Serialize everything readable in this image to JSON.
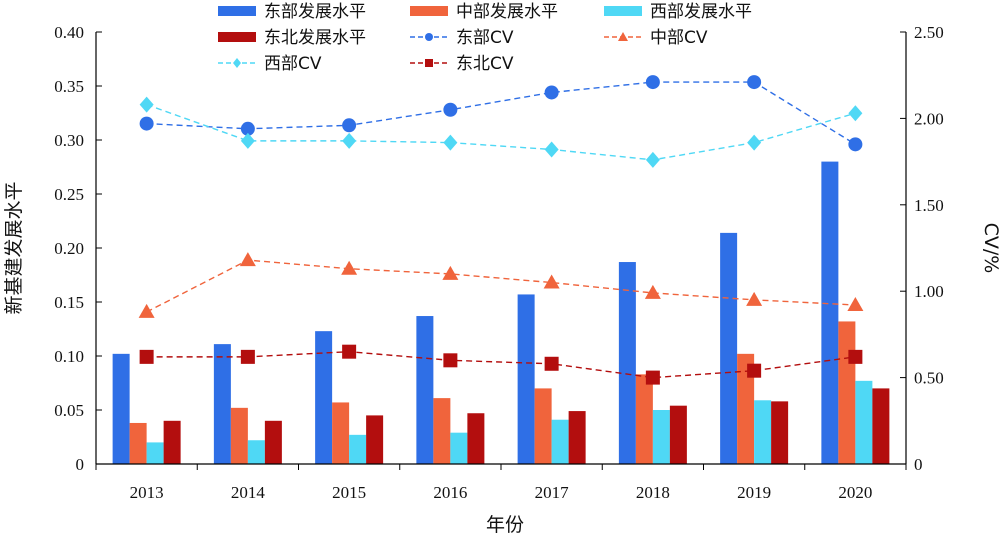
{
  "chart_data": {
    "type": "bar",
    "categories": [
      "2013",
      "2014",
      "2015",
      "2016",
      "2017",
      "2018",
      "2019",
      "2020"
    ],
    "xlabel": "年份",
    "ylabel": "新基建发展水平",
    "y2label": "CV/%",
    "ylim": [
      0,
      0.4
    ],
    "y2lim": [
      0,
      2.5
    ],
    "yticks": [
      "0",
      "0.05",
      "0.10",
      "0.15",
      "0.20",
      "0.25",
      "0.30",
      "0.35",
      "0.40"
    ],
    "y2ticks": [
      "0",
      "0.50",
      "1.00",
      "1.50",
      "2.00",
      "2.50"
    ],
    "bar_series": [
      {
        "name": "东部发展水平",
        "color": "#2f6fe6",
        "values": [
          0.102,
          0.111,
          0.123,
          0.137,
          0.157,
          0.187,
          0.214,
          0.28
        ]
      },
      {
        "name": "中部发展水平",
        "color": "#f0643c",
        "values": [
          0.038,
          0.052,
          0.057,
          0.061,
          0.07,
          0.083,
          0.102,
          0.132
        ]
      },
      {
        "name": "西部发展水平",
        "color": "#4fd8f5",
        "values": [
          0.02,
          0.022,
          0.027,
          0.029,
          0.041,
          0.05,
          0.059,
          0.077
        ]
      },
      {
        "name": "东北发展水平",
        "color": "#b30e0e",
        "values": [
          0.04,
          0.04,
          0.045,
          0.047,
          0.049,
          0.054,
          0.058,
          0.07
        ]
      }
    ],
    "line_series": [
      {
        "name": "东部CV",
        "color": "#2f6fe6",
        "marker": "circle",
        "values": [
          1.97,
          1.94,
          1.96,
          2.05,
          2.15,
          2.21,
          2.21,
          1.85
        ]
      },
      {
        "name": "中部CV",
        "color": "#f0643c",
        "marker": "triangle",
        "values": [
          0.88,
          1.18,
          1.13,
          1.1,
          1.05,
          0.99,
          0.95,
          0.92
        ]
      },
      {
        "name": "西部CV",
        "color": "#4fd8f5",
        "marker": "diamond",
        "values": [
          2.08,
          1.87,
          1.87,
          1.86,
          1.82,
          1.76,
          1.86,
          2.03
        ]
      },
      {
        "name": "东北CV",
        "color": "#b30e0e",
        "marker": "square",
        "values": [
          0.62,
          0.62,
          0.65,
          0.6,
          0.58,
          0.5,
          0.54,
          0.62
        ]
      }
    ],
    "legend": {
      "row1": [
        "东部发展水平",
        "中部发展水平",
        "西部发展水平"
      ],
      "row2": [
        "东北发展水平",
        "东部CV",
        "中部CV"
      ],
      "row3": [
        "西部CV",
        "东北CV"
      ]
    },
    "grid": false,
    "legend_position": "top"
  }
}
